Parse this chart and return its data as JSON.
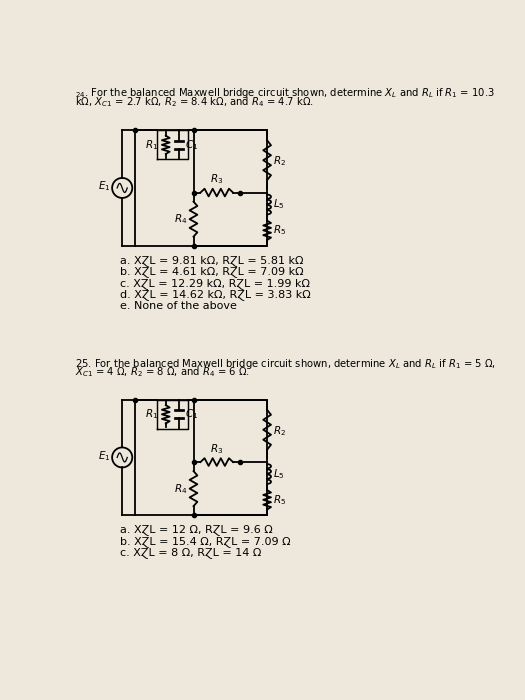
{
  "bg_color": "#ede8db",
  "title24_l1": "24. For the balanced Maxwell bridge circuit shown, determine XⱿL and RⱿL if R₁ = 10.3",
  "title24_l2": "kΩ, XⱿC1 = 2.7 kΩ, R₂ = 8.4 kΩ, and R₄ = 4.7 kΩ.",
  "title25_l1": "25. For the balanced Maxwell bridge circuit shown, determine XⱿL and RⱿL if R₁ = 5 Ω,",
  "title25_l2": "XⱿC1 = 4 Ω, R₂ = 8 Ω, and R₄ = 6 Ω.",
  "answers24": [
    "a. XⱿL = 9.81 kΩ, RⱿL = 5.81 kΩ",
    "b. XⱿL = 4.61 kΩ, RⱿL = 7.09 kΩ",
    "c. XⱿL = 12.29 kΩ, RⱿL = 1.99 kΩ",
    "d. XⱿL = 14.62 kΩ, RⱿL = 3.83 kΩ",
    "e. None of the above"
  ],
  "answers25": [
    "a. XⱿL = 12 Ω, RⱿL = 9.6 Ω",
    "b. XⱿL = 15.4 Ω, RⱿL = 7.09 Ω",
    "c. XⱿL = 8 Ω, RⱿL = 14 Ω"
  ],
  "font_title": 7.2,
  "font_ans": 8.0,
  "font_lbl": 7.5
}
